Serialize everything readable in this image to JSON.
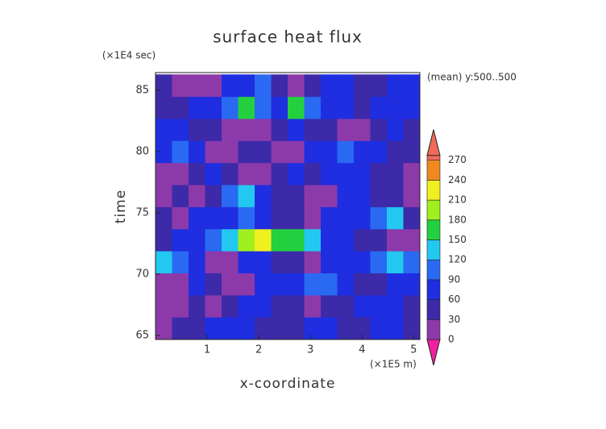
{
  "chart_data": {
    "type": "contour",
    "title": "surface heat flux",
    "y_unit": "(×1E4 sec)",
    "x_unit": "(×1E5 m)",
    "subtitle": "(mean) y:500..500",
    "ylabel": "time",
    "xlabel": "x-coordinate",
    "xlim": [
      0,
      5.12
    ],
    "ylim": [
      64.67,
      86.45
    ],
    "xticks": [
      1,
      2,
      3,
      4,
      5
    ],
    "yticks": [
      65,
      70,
      75,
      80,
      85
    ],
    "x": [
      0.16,
      0.48,
      0.8,
      1.12,
      1.44,
      1.76,
      2.08,
      2.4,
      2.72,
      3.04,
      3.36,
      3.68,
      4.0,
      4.32,
      4.64,
      4.96
    ],
    "y": [
      65.6,
      67.4,
      69.2,
      71.0,
      72.8,
      74.6,
      76.4,
      78.2,
      80.0,
      81.8,
      83.6,
      85.4
    ],
    "z": [
      [
        20,
        45,
        50,
        60,
        70,
        60,
        40,
        30,
        50,
        70,
        60,
        40,
        30,
        60,
        70,
        50
      ],
      [
        20,
        15,
        30,
        20,
        50,
        60,
        70,
        40,
        30,
        20,
        30,
        50,
        60,
        70,
        80,
        40
      ],
      [
        15,
        20,
        60,
        40,
        15,
        20,
        60,
        70,
        80,
        90,
        110,
        70,
        40,
        30,
        60,
        70
      ],
      [
        140,
        100,
        60,
        20,
        15,
        60,
        70,
        40,
        30,
        20,
        60,
        80,
        70,
        90,
        120,
        100
      ],
      [
        30,
        70,
        80,
        90,
        130,
        200,
        230,
        150,
        170,
        120,
        70,
        60,
        40,
        30,
        20,
        15
      ],
      [
        40,
        20,
        60,
        80,
        70,
        90,
        60,
        40,
        30,
        20,
        70,
        80,
        60,
        100,
        130,
        40
      ],
      [
        20,
        30,
        15,
        50,
        90,
        130,
        80,
        50,
        30,
        15,
        20,
        60,
        80,
        40,
        30,
        20
      ],
      [
        15,
        20,
        30,
        60,
        40,
        20,
        15,
        40,
        60,
        30,
        70,
        80,
        60,
        50,
        40,
        20
      ],
      [
        80,
        110,
        60,
        20,
        15,
        30,
        40,
        20,
        15,
        60,
        70,
        90,
        80,
        60,
        30,
        50
      ],
      [
        60,
        70,
        40,
        30,
        15,
        20,
        15,
        30,
        60,
        50,
        40,
        20,
        15,
        40,
        60,
        30
      ],
      [
        40,
        30,
        60,
        80,
        100,
        150,
        90,
        60,
        170,
        110,
        70,
        80,
        50,
        60,
        70,
        80
      ],
      [
        30,
        20,
        15,
        20,
        60,
        80,
        90,
        30,
        15,
        40,
        70,
        60,
        40,
        50,
        60,
        70
      ]
    ],
    "levels": [
      0,
      30,
      60,
      90,
      120,
      150,
      180,
      210,
      240,
      270
    ],
    "level_colors": [
      "#f020a0",
      "#8c3aaa",
      "#3c2aa8",
      "#1e2ee0",
      "#2a6af2",
      "#22c8f0",
      "#22d040",
      "#a0f020",
      "#f0f020",
      "#f08a20",
      "#f06a5a"
    ]
  }
}
